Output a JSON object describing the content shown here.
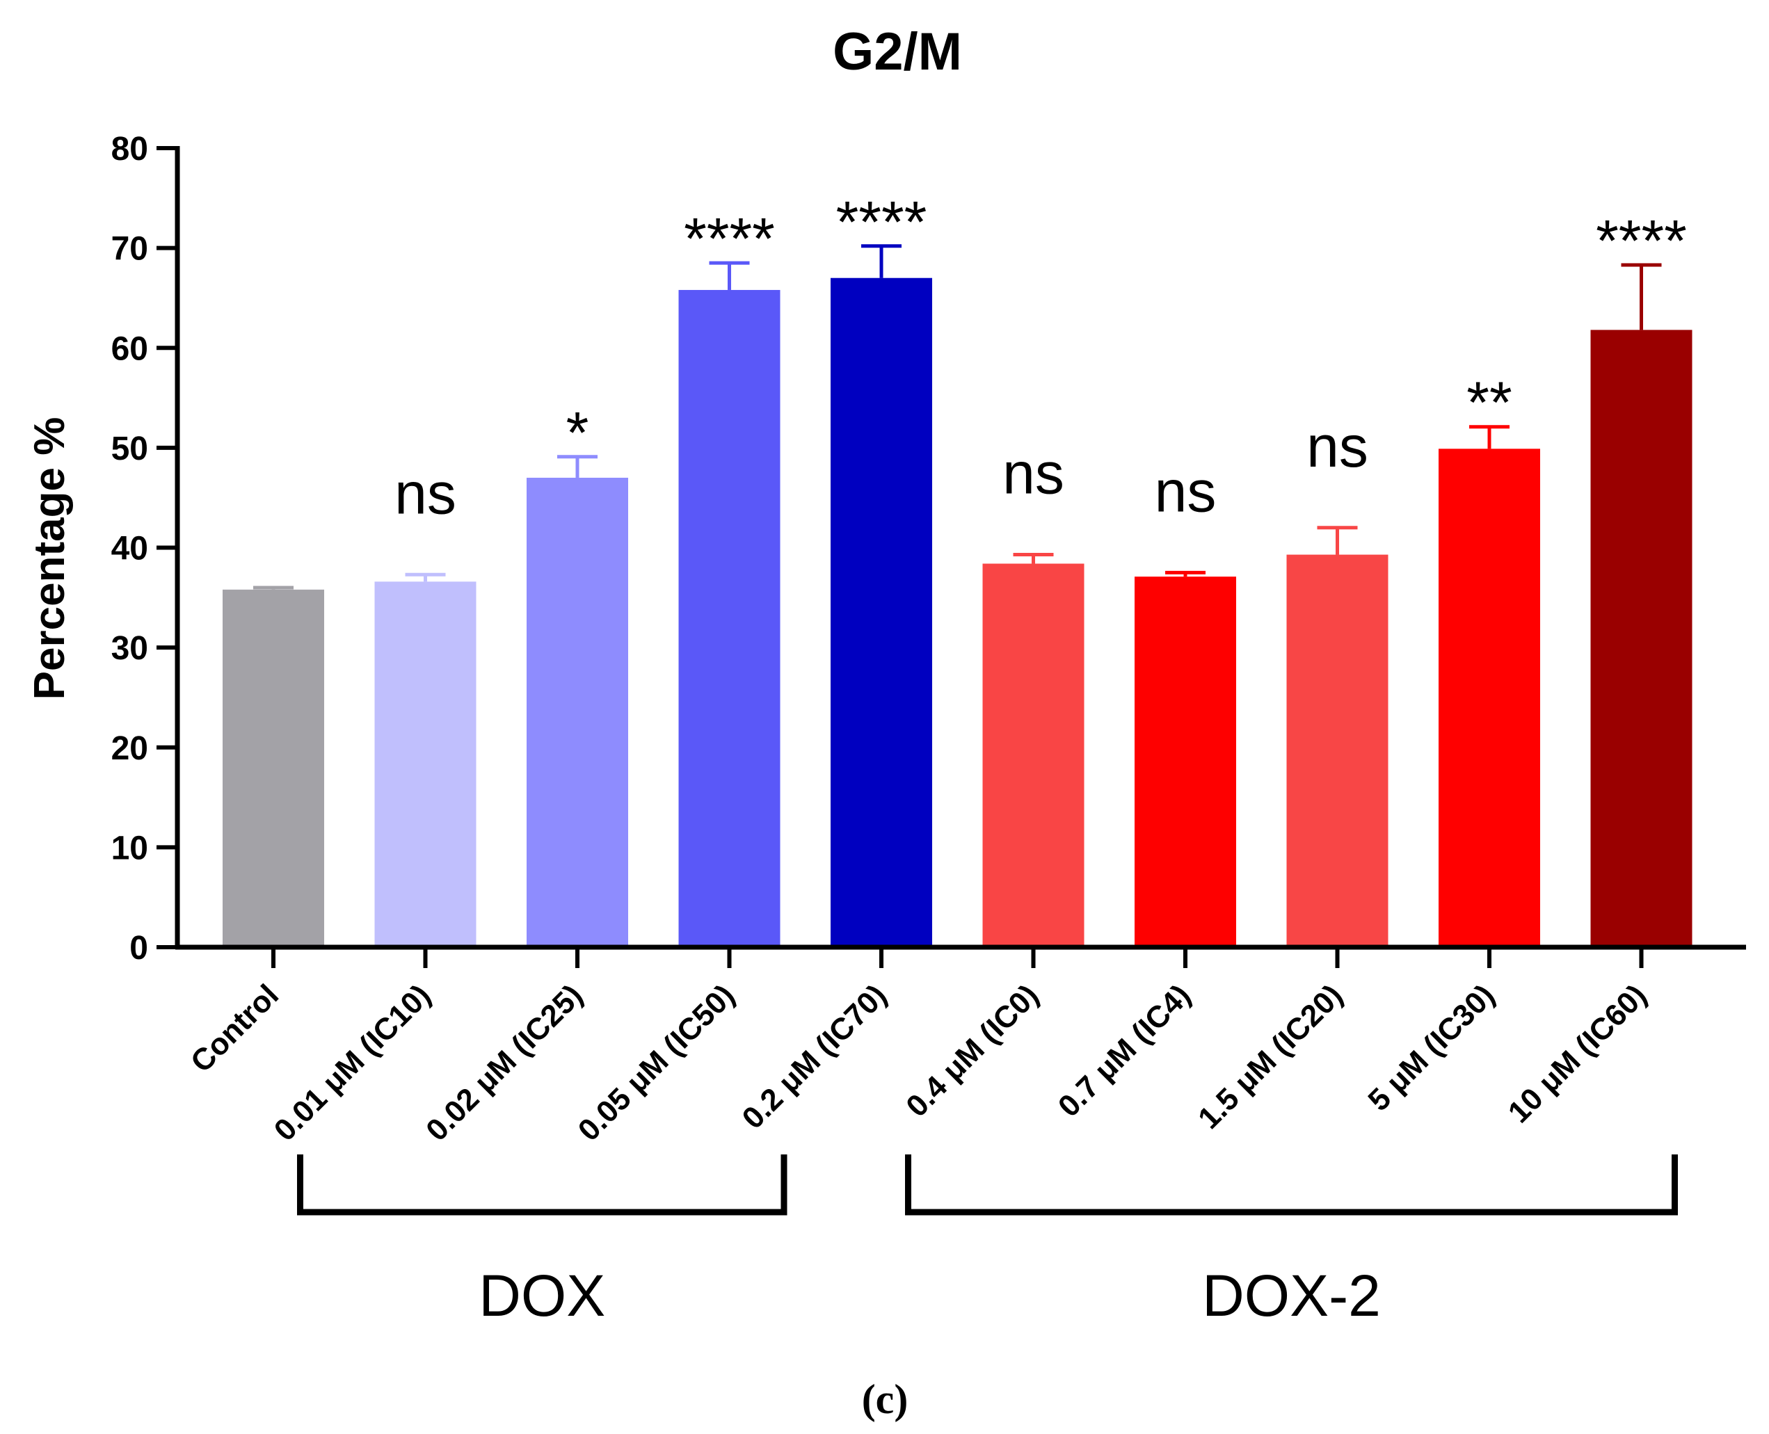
{
  "chart_data": {
    "type": "bar",
    "title": "G2/M",
    "xlabel": "",
    "ylabel": "Percentage %",
    "ylim": [
      0,
      80
    ],
    "yticks": [
      0,
      10,
      20,
      30,
      40,
      50,
      60,
      70,
      80
    ],
    "grid": false,
    "legend": "none",
    "categories": [
      "Control",
      "0.01 μM (IC10)",
      "0.02 μM (IC25)",
      "0.05 μM (IC50)",
      "0.2 μM (IC70)",
      "0.4 μM (IC0)",
      "0.7 μM (IC4)",
      "1.5 μM (IC20)",
      "5 μM (IC30)",
      "10 μM (IC60)"
    ],
    "values": [
      35.8,
      36.6,
      47.0,
      65.8,
      67.0,
      38.4,
      37.1,
      39.3,
      49.9,
      61.8
    ],
    "errors": [
      0.2,
      0.7,
      2.1,
      2.7,
      3.2,
      0.9,
      0.4,
      2.7,
      2.2,
      6.5
    ],
    "colors": [
      "#a3a2a7",
      "#c0bffd",
      "#8e8cfe",
      "#5a58f8",
      "#0000c0",
      "#f94545",
      "#fe0000",
      "#f84646",
      "#ff0000",
      "#9a0000"
    ],
    "significance": [
      "",
      "ns",
      "*",
      "****",
      "****",
      "ns",
      "ns",
      "ns",
      "**",
      "****"
    ],
    "groups": [
      {
        "label": "DOX",
        "from": 1,
        "to": 4
      },
      {
        "label": "DOX-2",
        "from": 5,
        "to": 9
      }
    ]
  },
  "panel_label": "(c)"
}
